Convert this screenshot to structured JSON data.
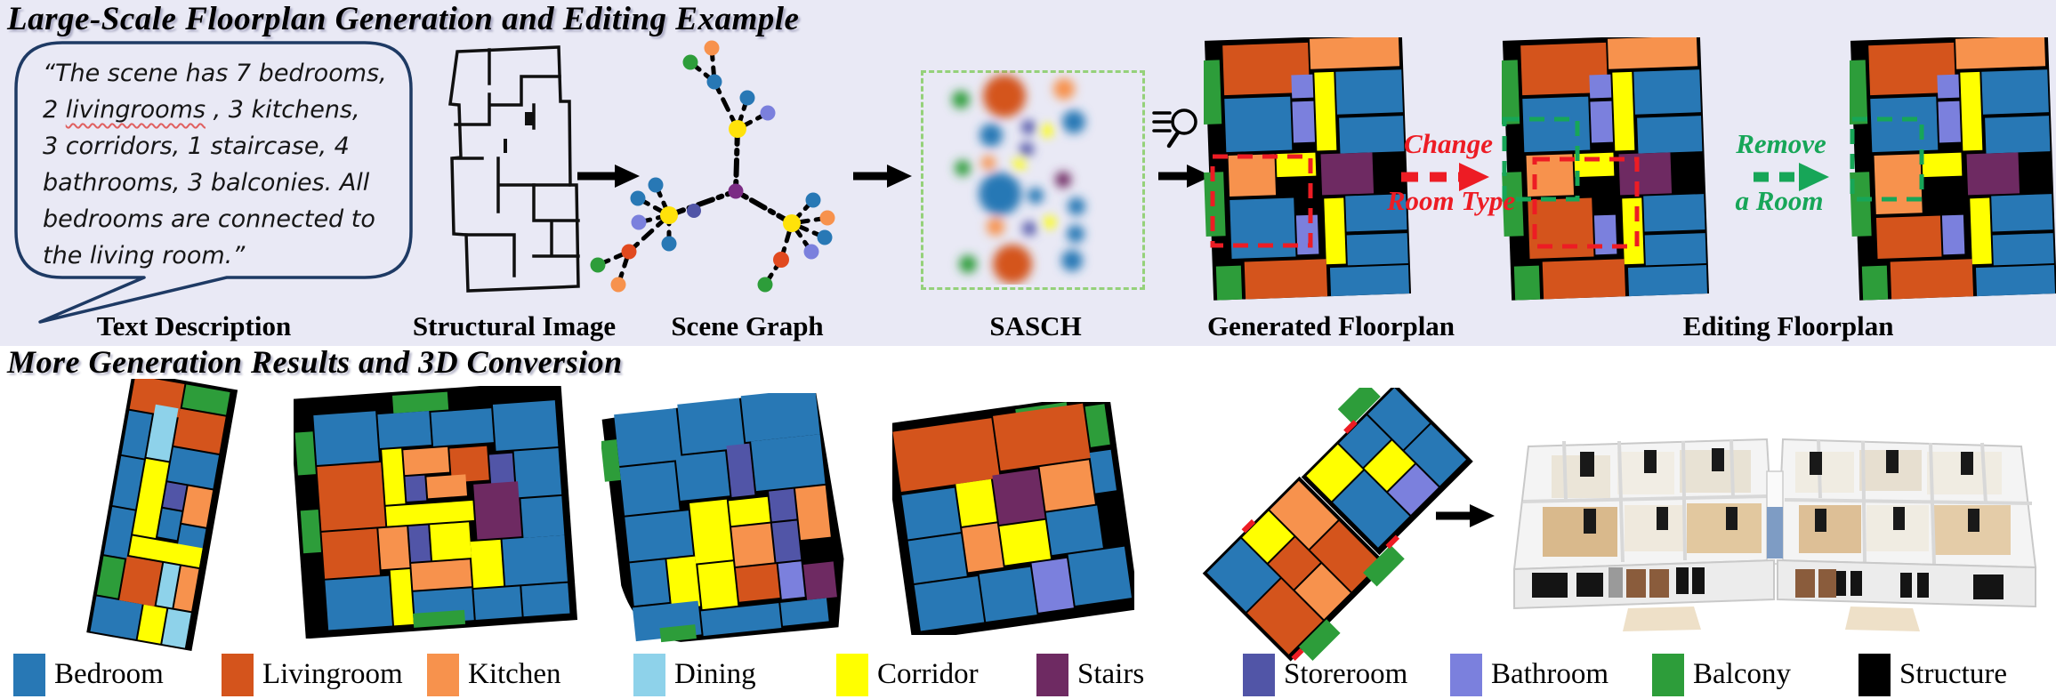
{
  "titles": {
    "top": "Large-Scale Floorplan Generation and Editing Example",
    "bottom": "More Generation Results and 3D Conversion"
  },
  "bubble": {
    "line1": "“The scene has 7 bedrooms,",
    "line2_pre": "2 ",
    "line2_word": "livingrooms",
    "line2_post": " , 3 kitchens,",
    "line3": "3 corridors, 1 staircase, 4",
    "line4": "bathrooms, 3 balconies. All",
    "line5": "bedrooms are connected to",
    "line6": "the living room.”"
  },
  "pipeline": {
    "labels": [
      "Text Description",
      "Structural Image",
      "Scene Graph",
      "SASCH",
      "Generated Floorplan",
      "Editing Floorplan"
    ]
  },
  "editing": {
    "change_top": "Change",
    "change_bottom": "Room Type",
    "remove_top": "Remove",
    "remove_bottom": "a Room"
  },
  "icons": {
    "magnifier": "magnifier-with-detail-lines",
    "arrow": "solid-right-arrow"
  },
  "legend": {
    "items": [
      {
        "label": "Bedroom",
        "key": "bedroom"
      },
      {
        "label": "Livingroom",
        "key": "livingroom"
      },
      {
        "label": "Kitchen",
        "key": "kitchen"
      },
      {
        "label": "Dining",
        "key": "dining"
      },
      {
        "label": "Corridor",
        "key": "corridor"
      },
      {
        "label": "Stairs",
        "key": "stairs"
      },
      {
        "label": "Storeroom",
        "key": "storeroom"
      },
      {
        "label": "Bathroom",
        "key": "bathroom"
      },
      {
        "label": "Balcony",
        "key": "balcony"
      },
      {
        "label": "Structure",
        "key": "structure"
      }
    ]
  },
  "colors": {
    "bedroom": "#2878b5",
    "livingroom": "#d4541c",
    "kitchen": "#f7924d",
    "dining": "#8ed2ea",
    "corridor": "#ffff00",
    "stairs": "#6e2a62",
    "storeroom": "#5155a7",
    "bathroom": "#7b80dd",
    "balcony": "#2d9d3a",
    "structure": "#000000",
    "accent_red": "#ed1c24",
    "accent_green": "#17a658",
    "bubble_border": "#1e3a64",
    "bg_top": "#e9e9f5",
    "sasch_border": "#95d17a",
    "graph_hub": "#ffe20a",
    "graph_center": "#7b2c84",
    "graph_red_orange": "#e1491f"
  }
}
